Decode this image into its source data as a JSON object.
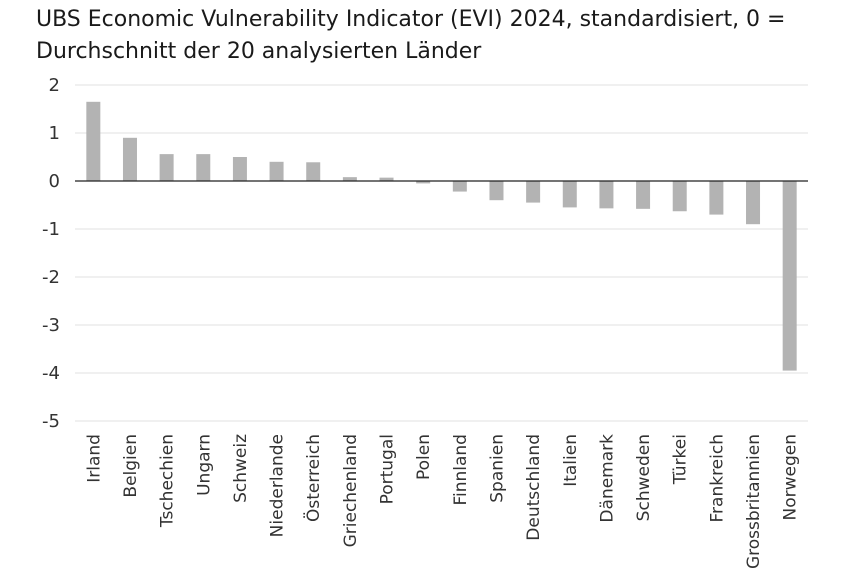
{
  "chart_data": {
    "type": "bar",
    "title_line1": "UBS Economic Vulnerability Indicator (EVI) 2024, standardisiert, 0 =",
    "title_line2": "Durchschnitt der 20 analysierten Länder",
    "categories": [
      "Irland",
      "Belgien",
      "Tschechien",
      "Ungarn",
      "Schweiz",
      "Niederlande",
      "Österreich",
      "Griechenland",
      "Portugal",
      "Polen",
      "Finnland",
      "Spanien",
      "Deutschland",
      "Italien",
      "Dänemark",
      "Schweden",
      "Türkei",
      "Frankreich",
      "Grossbritannien",
      "Norwegen"
    ],
    "values": [
      1.65,
      0.9,
      0.56,
      0.56,
      0.5,
      0.4,
      0.39,
      0.08,
      0.07,
      -0.05,
      -0.22,
      -0.4,
      -0.45,
      -0.55,
      -0.57,
      -0.58,
      -0.63,
      -0.7,
      -0.9,
      -3.95
    ],
    "ylim": [
      -5,
      2
    ],
    "yticks": [
      "2",
      "1",
      "0",
      "-1",
      "-2",
      "-3",
      "-4",
      "-5"
    ],
    "xlabel": "",
    "ylabel": "",
    "bar_color": "#b3b3b3",
    "grid_color": "#e0e0e0"
  }
}
